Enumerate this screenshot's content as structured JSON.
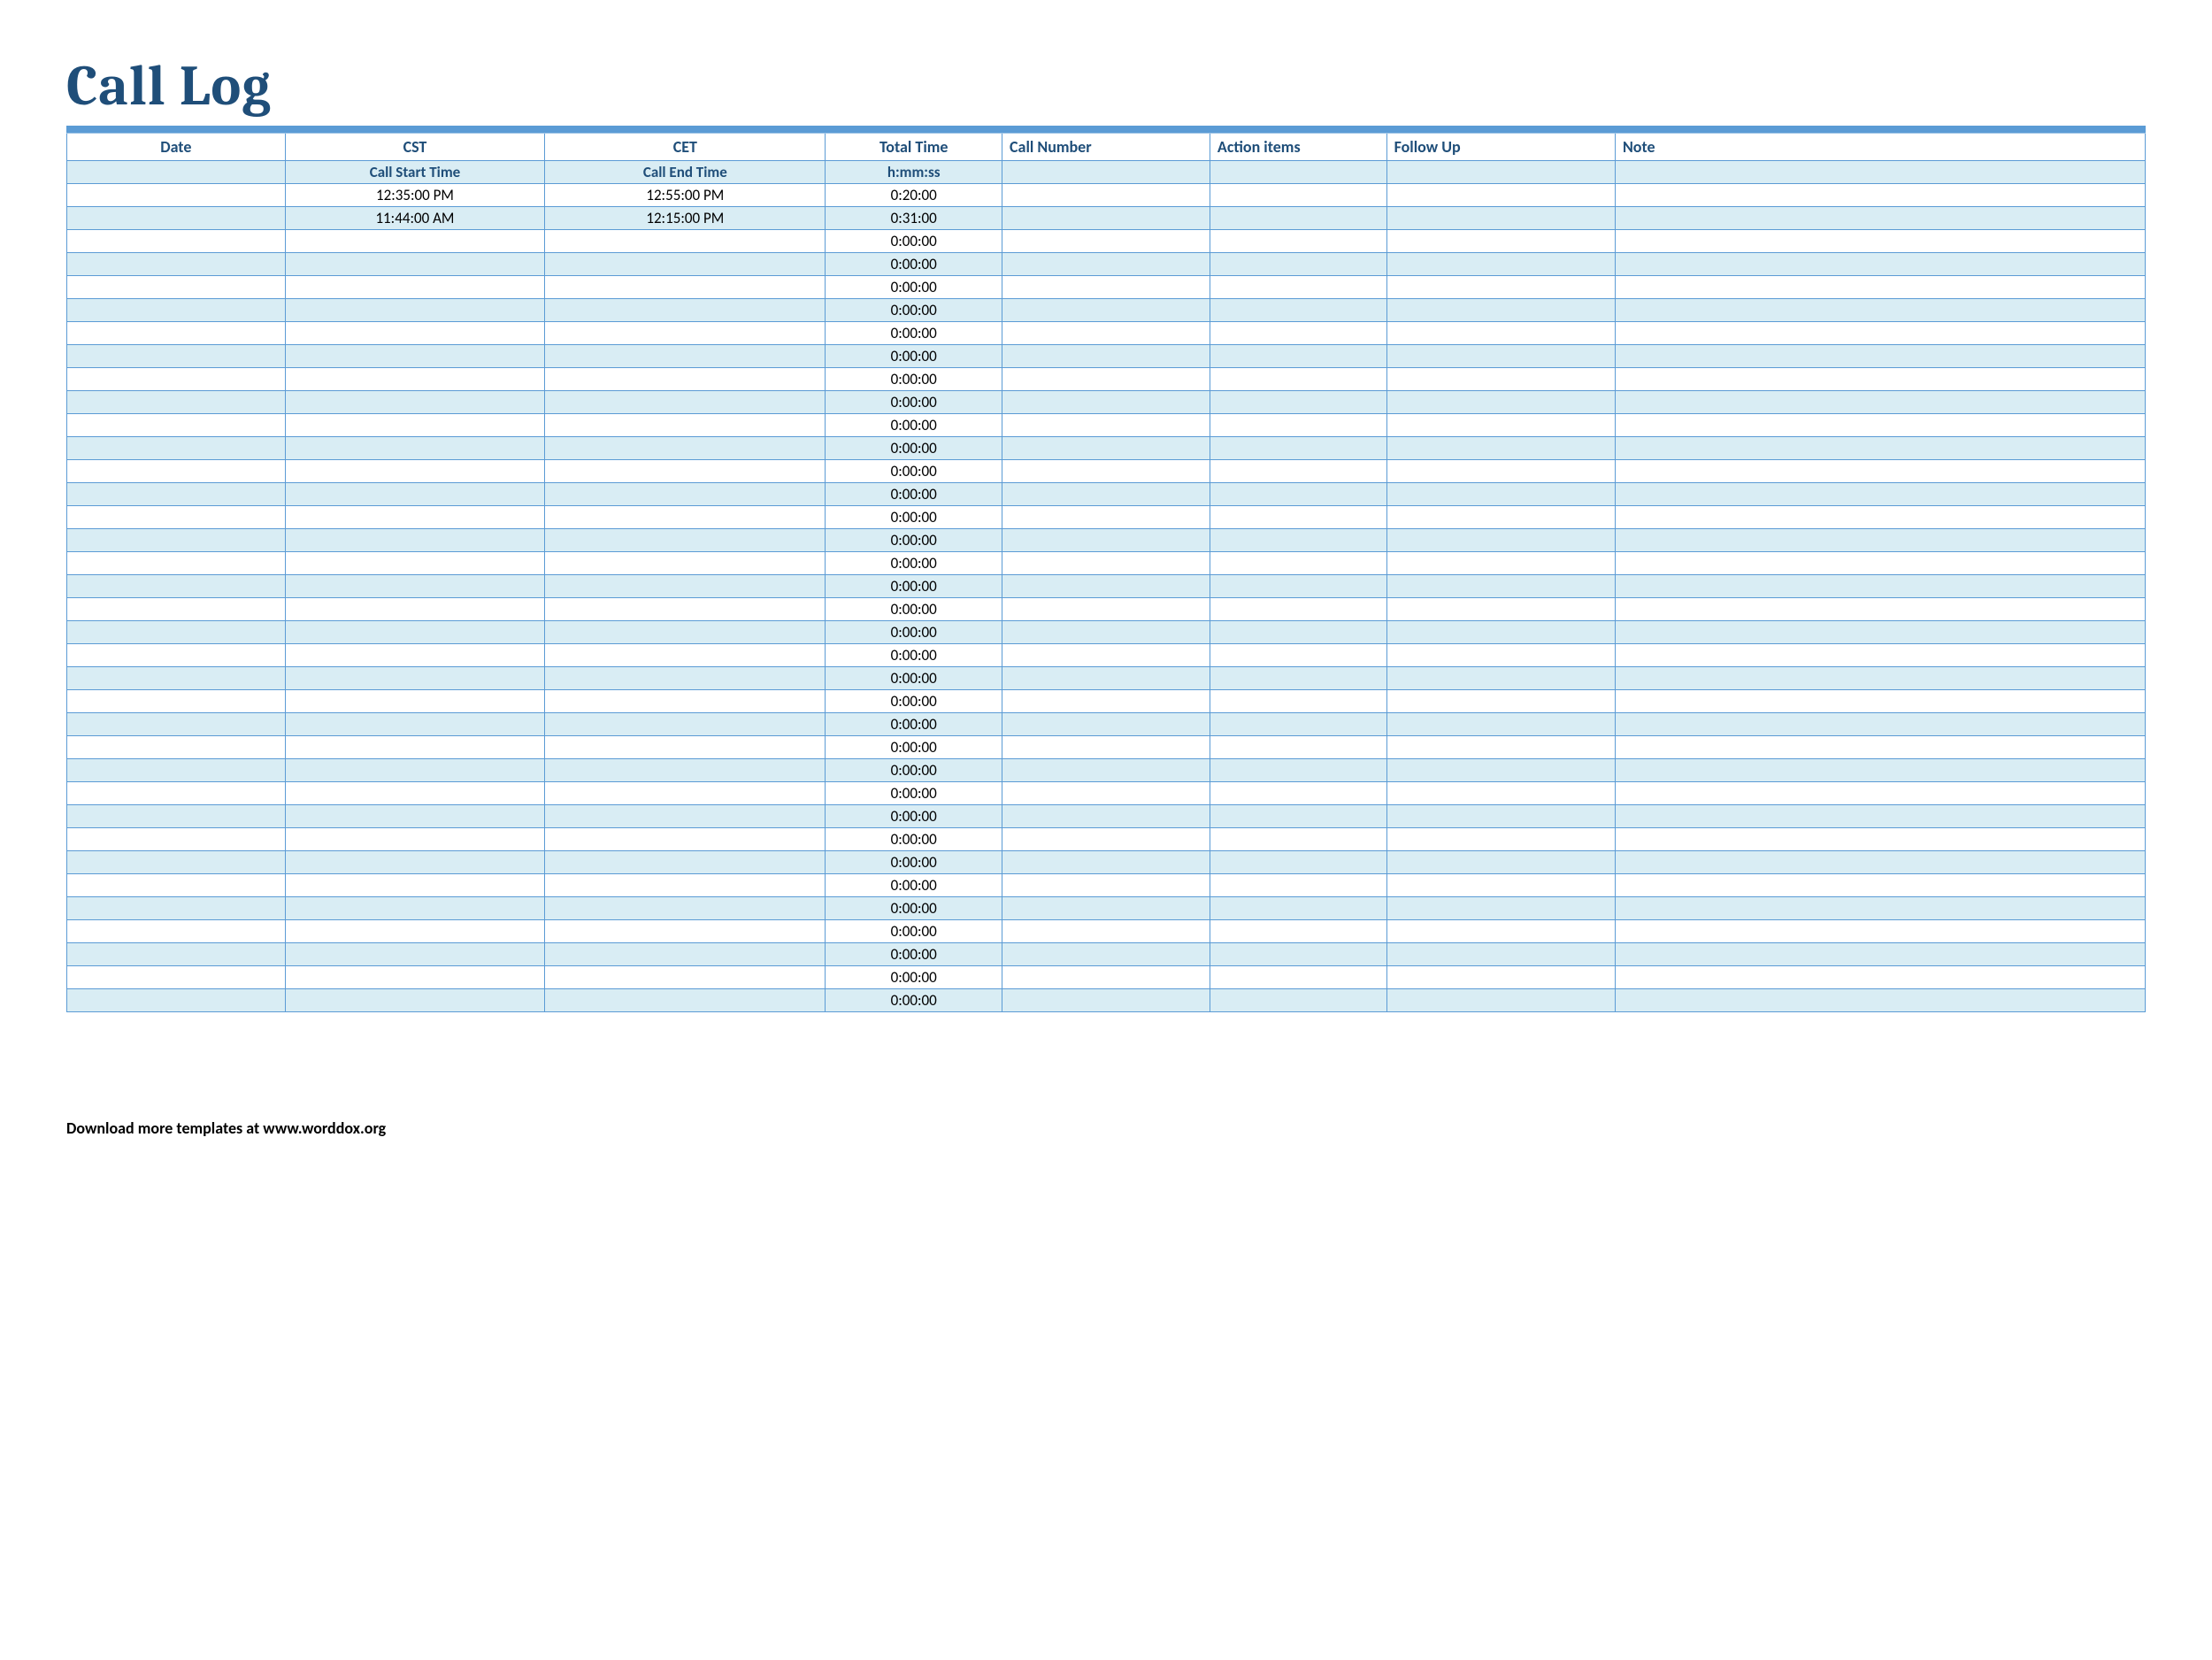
{
  "title": "Call Log",
  "colors": {
    "title_color": "#1f4e79",
    "header_text": "#1f4e79",
    "border": "#5b9bd5",
    "topbar": "#5b9bd5",
    "band_bg": "#d9edf4",
    "noband_bg": "#ffffff",
    "body_text": "#000000",
    "page_bg": "#ffffff"
  },
  "fonts": {
    "title_family": "Cambria",
    "title_size_pt": 48,
    "header_size_pt": 14,
    "cell_size_pt": 13
  },
  "columns": [
    {
      "key": "date",
      "label": "Date",
      "align": "center",
      "width_pct": 10.5
    },
    {
      "key": "cst",
      "label": "CST",
      "align": "center",
      "width_pct": 12.5
    },
    {
      "key": "cet",
      "label": "CET",
      "align": "center",
      "width_pct": 13.5
    },
    {
      "key": "total",
      "label": "Total Time",
      "align": "center",
      "width_pct": 8.5
    },
    {
      "key": "callno",
      "label": "Call Number",
      "align": "left",
      "width_pct": 10
    },
    {
      "key": "action",
      "label": "Action items",
      "align": "left",
      "width_pct": 8.5
    },
    {
      "key": "follow",
      "label": "Follow Up",
      "align": "left",
      "width_pct": 11
    },
    {
      "key": "note",
      "label": "Note",
      "align": "left",
      "width_pct": 25.5
    }
  ],
  "subheader": {
    "date": "",
    "cst": "Call Start Time",
    "cet": "Call End Time",
    "total": "h:mm:ss",
    "callno": "",
    "action": "",
    "follow": "",
    "note": ""
  },
  "rows": [
    {
      "date": "",
      "cst": "12:35:00 PM",
      "cet": "12:55:00 PM",
      "total": "0:20:00",
      "callno": "",
      "action": "",
      "follow": "",
      "note": ""
    },
    {
      "date": "",
      "cst": "11:44:00 AM",
      "cet": "12:15:00 PM",
      "total": "0:31:00",
      "callno": "",
      "action": "",
      "follow": "",
      "note": ""
    },
    {
      "date": "",
      "cst": "",
      "cet": "",
      "total": "0:00:00",
      "callno": "",
      "action": "",
      "follow": "",
      "note": ""
    },
    {
      "date": "",
      "cst": "",
      "cet": "",
      "total": "0:00:00",
      "callno": "",
      "action": "",
      "follow": "",
      "note": ""
    },
    {
      "date": "",
      "cst": "",
      "cet": "",
      "total": "0:00:00",
      "callno": "",
      "action": "",
      "follow": "",
      "note": ""
    },
    {
      "date": "",
      "cst": "",
      "cet": "",
      "total": "0:00:00",
      "callno": "",
      "action": "",
      "follow": "",
      "note": ""
    },
    {
      "date": "",
      "cst": "",
      "cet": "",
      "total": "0:00:00",
      "callno": "",
      "action": "",
      "follow": "",
      "note": ""
    },
    {
      "date": "",
      "cst": "",
      "cet": "",
      "total": "0:00:00",
      "callno": "",
      "action": "",
      "follow": "",
      "note": ""
    },
    {
      "date": "",
      "cst": "",
      "cet": "",
      "total": "0:00:00",
      "callno": "",
      "action": "",
      "follow": "",
      "note": ""
    },
    {
      "date": "",
      "cst": "",
      "cet": "",
      "total": "0:00:00",
      "callno": "",
      "action": "",
      "follow": "",
      "note": ""
    },
    {
      "date": "",
      "cst": "",
      "cet": "",
      "total": "0:00:00",
      "callno": "",
      "action": "",
      "follow": "",
      "note": ""
    },
    {
      "date": "",
      "cst": "",
      "cet": "",
      "total": "0:00:00",
      "callno": "",
      "action": "",
      "follow": "",
      "note": ""
    },
    {
      "date": "",
      "cst": "",
      "cet": "",
      "total": "0:00:00",
      "callno": "",
      "action": "",
      "follow": "",
      "note": ""
    },
    {
      "date": "",
      "cst": "",
      "cet": "",
      "total": "0:00:00",
      "callno": "",
      "action": "",
      "follow": "",
      "note": ""
    },
    {
      "date": "",
      "cst": "",
      "cet": "",
      "total": "0:00:00",
      "callno": "",
      "action": "",
      "follow": "",
      "note": ""
    },
    {
      "date": "",
      "cst": "",
      "cet": "",
      "total": "0:00:00",
      "callno": "",
      "action": "",
      "follow": "",
      "note": ""
    },
    {
      "date": "",
      "cst": "",
      "cet": "",
      "total": "0:00:00",
      "callno": "",
      "action": "",
      "follow": "",
      "note": ""
    },
    {
      "date": "",
      "cst": "",
      "cet": "",
      "total": "0:00:00",
      "callno": "",
      "action": "",
      "follow": "",
      "note": ""
    },
    {
      "date": "",
      "cst": "",
      "cet": "",
      "total": "0:00:00",
      "callno": "",
      "action": "",
      "follow": "",
      "note": ""
    },
    {
      "date": "",
      "cst": "",
      "cet": "",
      "total": "0:00:00",
      "callno": "",
      "action": "",
      "follow": "",
      "note": ""
    },
    {
      "date": "",
      "cst": "",
      "cet": "",
      "total": "0:00:00",
      "callno": "",
      "action": "",
      "follow": "",
      "note": ""
    },
    {
      "date": "",
      "cst": "",
      "cet": "",
      "total": "0:00:00",
      "callno": "",
      "action": "",
      "follow": "",
      "note": ""
    },
    {
      "date": "",
      "cst": "",
      "cet": "",
      "total": "0:00:00",
      "callno": "",
      "action": "",
      "follow": "",
      "note": ""
    },
    {
      "date": "",
      "cst": "",
      "cet": "",
      "total": "0:00:00",
      "callno": "",
      "action": "",
      "follow": "",
      "note": ""
    },
    {
      "date": "",
      "cst": "",
      "cet": "",
      "total": "0:00:00",
      "callno": "",
      "action": "",
      "follow": "",
      "note": ""
    },
    {
      "date": "",
      "cst": "",
      "cet": "",
      "total": "0:00:00",
      "callno": "",
      "action": "",
      "follow": "",
      "note": ""
    },
    {
      "date": "",
      "cst": "",
      "cet": "",
      "total": "0:00:00",
      "callno": "",
      "action": "",
      "follow": "",
      "note": ""
    },
    {
      "date": "",
      "cst": "",
      "cet": "",
      "total": "0:00:00",
      "callno": "",
      "action": "",
      "follow": "",
      "note": ""
    },
    {
      "date": "",
      "cst": "",
      "cet": "",
      "total": "0:00:00",
      "callno": "",
      "action": "",
      "follow": "",
      "note": ""
    },
    {
      "date": "",
      "cst": "",
      "cet": "",
      "total": "0:00:00",
      "callno": "",
      "action": "",
      "follow": "",
      "note": ""
    },
    {
      "date": "",
      "cst": "",
      "cet": "",
      "total": "0:00:00",
      "callno": "",
      "action": "",
      "follow": "",
      "note": ""
    },
    {
      "date": "",
      "cst": "",
      "cet": "",
      "total": "0:00:00",
      "callno": "",
      "action": "",
      "follow": "",
      "note": ""
    },
    {
      "date": "",
      "cst": "",
      "cet": "",
      "total": "0:00:00",
      "callno": "",
      "action": "",
      "follow": "",
      "note": ""
    },
    {
      "date": "",
      "cst": "",
      "cet": "",
      "total": "0:00:00",
      "callno": "",
      "action": "",
      "follow": "",
      "note": ""
    },
    {
      "date": "",
      "cst": "",
      "cet": "",
      "total": "0:00:00",
      "callno": "",
      "action": "",
      "follow": "",
      "note": ""
    },
    {
      "date": "",
      "cst": "",
      "cet": "",
      "total": "0:00:00",
      "callno": "",
      "action": "",
      "follow": "",
      "note": ""
    }
  ],
  "footer": "Download more templates at www.worddox.org"
}
